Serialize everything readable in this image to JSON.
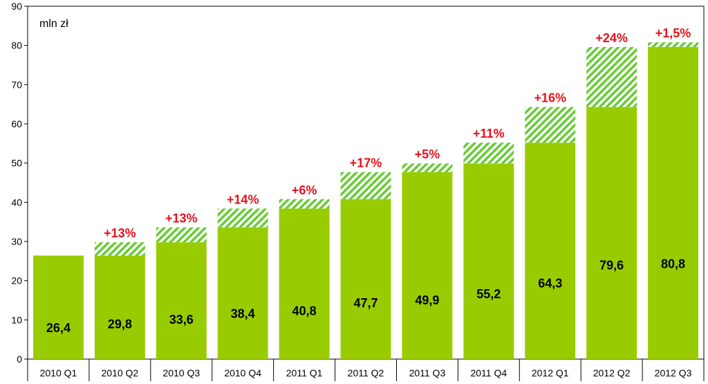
{
  "chart_data": {
    "type": "bar",
    "unit_label": "mln zł",
    "categories": [
      "2010 Q1",
      "2010 Q2",
      "2010 Q3",
      "2010 Q4",
      "2011 Q1",
      "2011 Q2",
      "2011 Q3",
      "2011 Q4",
      "2012 Q1",
      "2012 Q2",
      "2012 Q3"
    ],
    "values": [
      26.4,
      29.8,
      33.6,
      38.4,
      40.8,
      47.7,
      49.9,
      55.2,
      64.3,
      79.6,
      80.8
    ],
    "value_labels": [
      "26,4",
      "29,8",
      "33,6",
      "38,4",
      "40,8",
      "47,7",
      "49,9",
      "55,2",
      "64,3",
      "79,6",
      "80,8"
    ],
    "growth_labels": [
      "",
      "+13%",
      "+13%",
      "+14%",
      "+6%",
      "+17%",
      "+5%",
      "+11%",
      "+16%",
      "+24%",
      "+1,5%"
    ],
    "ylim": [
      0,
      90
    ],
    "yticks": [
      0,
      10,
      20,
      30,
      40,
      50,
      60,
      70,
      80,
      90
    ],
    "grid": false,
    "colors": {
      "bar": "#99cc00",
      "growth_hatch": "#66cc33",
      "growth_text": "#e8111a"
    }
  }
}
